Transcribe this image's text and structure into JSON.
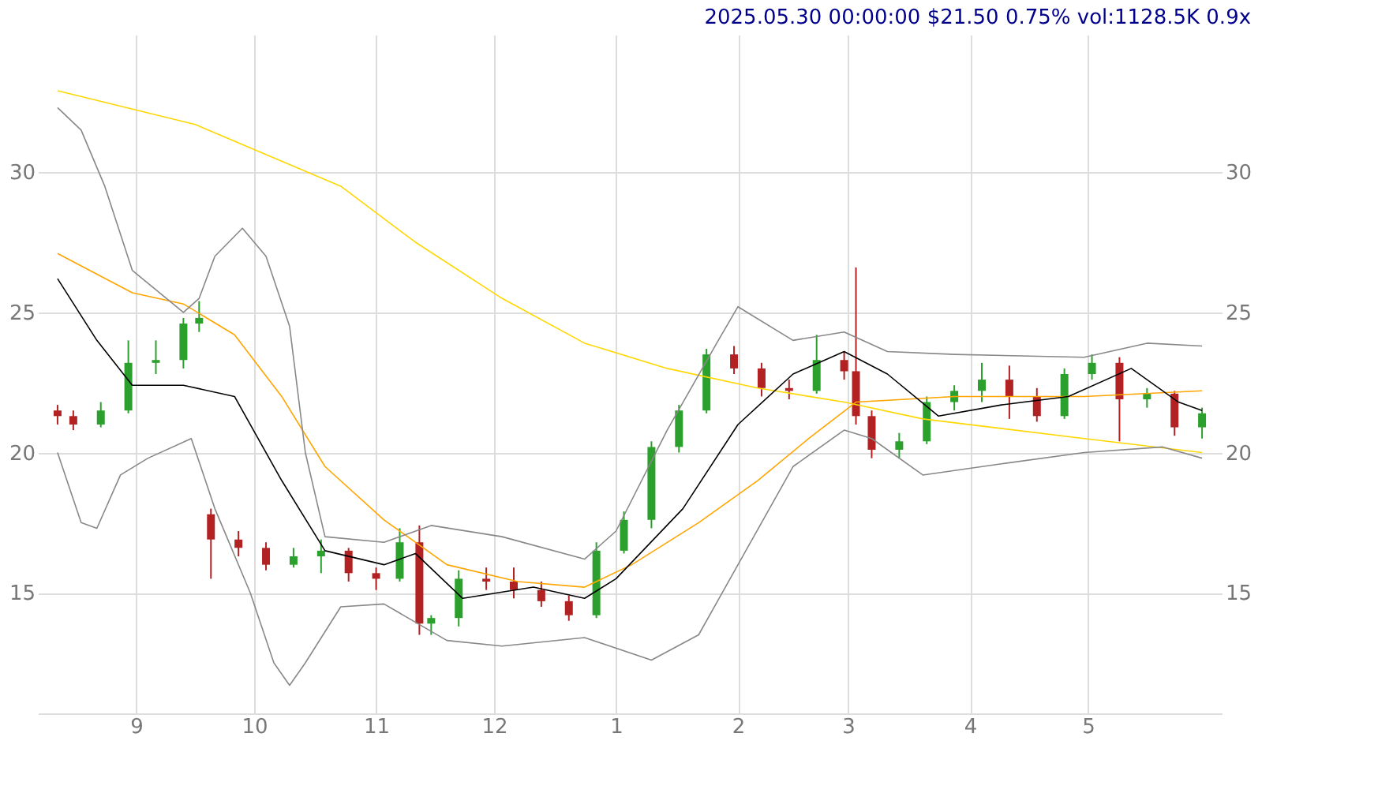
{
  "chart_data": {
    "type": "candlestick",
    "title": "2025.05.30 00:00:00 $21.50 0.75% vol:1128.5K 0.9x",
    "x": [
      "2024-08-12",
      "2024-08-16",
      "2024-08-23",
      "2024-08-30",
      "2024-09-06",
      "2024-09-13",
      "2024-09-17",
      "2024-09-20",
      "2024-09-27",
      "2024-10-04",
      "2024-10-11",
      "2024-10-18",
      "2024-10-25",
      "2024-11-01",
      "2024-11-07",
      "2024-11-12",
      "2024-11-15",
      "2024-11-22",
      "2024-11-29",
      "2024-12-06",
      "2024-12-13",
      "2024-12-20",
      "2024-12-27",
      "2025-01-03",
      "2025-01-10",
      "2025-01-17",
      "2025-01-24",
      "2025-01-31",
      "2025-02-07",
      "2025-02-14",
      "2025-02-21",
      "2025-02-28",
      "2025-03-03",
      "2025-03-07",
      "2025-03-14",
      "2025-03-21",
      "2025-03-28",
      "2025-04-04",
      "2025-04-11",
      "2025-04-18",
      "2025-04-25",
      "2025-05-02",
      "2025-05-09",
      "2025-05-16",
      "2025-05-23",
      "2025-05-30"
    ],
    "ohlc": [
      [
        21.5,
        21.7,
        21.0,
        21.3
      ],
      [
        21.3,
        21.5,
        20.8,
        21.0
      ],
      [
        21.0,
        21.8,
        20.9,
        21.5
      ],
      [
        21.5,
        24.0,
        21.4,
        23.2
      ],
      [
        23.2,
        24.0,
        22.8,
        23.3
      ],
      [
        23.3,
        24.8,
        23.0,
        24.6
      ],
      [
        24.6,
        25.4,
        24.3,
        24.8
      ],
      [
        17.8,
        18.0,
        15.5,
        16.9
      ],
      [
        16.9,
        17.2,
        16.3,
        16.6
      ],
      [
        16.6,
        16.8,
        15.8,
        16.0
      ],
      [
        16.0,
        16.6,
        15.9,
        16.3
      ],
      [
        16.3,
        16.9,
        15.7,
        16.5
      ],
      [
        16.5,
        16.6,
        15.4,
        15.7
      ],
      [
        15.7,
        15.9,
        15.1,
        15.5
      ],
      [
        15.5,
        17.3,
        15.4,
        16.8
      ],
      [
        16.8,
        17.4,
        13.5,
        13.9
      ],
      [
        13.9,
        14.2,
        13.5,
        14.1
      ],
      [
        14.1,
        15.8,
        13.8,
        15.5
      ],
      [
        15.5,
        15.9,
        15.1,
        15.4
      ],
      [
        15.4,
        15.9,
        14.8,
        15.1
      ],
      [
        15.1,
        15.4,
        14.5,
        14.7
      ],
      [
        14.7,
        14.9,
        14.0,
        14.2
      ],
      [
        14.2,
        16.8,
        14.1,
        16.5
      ],
      [
        16.5,
        17.9,
        16.4,
        17.6
      ],
      [
        17.6,
        20.4,
        17.3,
        20.2
      ],
      [
        20.2,
        21.7,
        20.0,
        21.5
      ],
      [
        21.5,
        23.7,
        21.4,
        23.5
      ],
      [
        23.5,
        23.8,
        22.8,
        23.0
      ],
      [
        23.0,
        23.2,
        22.0,
        22.3
      ],
      [
        22.3,
        22.6,
        21.9,
        22.2
      ],
      [
        22.2,
        24.2,
        22.1,
        23.3
      ],
      [
        23.3,
        23.6,
        22.6,
        22.9
      ],
      [
        22.9,
        26.6,
        21.0,
        21.3
      ],
      [
        21.3,
        21.5,
        19.8,
        20.1
      ],
      [
        20.1,
        20.7,
        19.8,
        20.4
      ],
      [
        20.4,
        22.0,
        20.3,
        21.8
      ],
      [
        21.8,
        22.4,
        21.5,
        22.2
      ],
      [
        22.2,
        23.2,
        21.8,
        22.6
      ],
      [
        22.6,
        23.1,
        21.2,
        22.0
      ],
      [
        22.0,
        22.3,
        21.1,
        21.3
      ],
      [
        21.3,
        23.0,
        21.2,
        22.8
      ],
      [
        22.8,
        23.5,
        22.6,
        23.2
      ],
      [
        23.2,
        23.4,
        20.4,
        21.9
      ],
      [
        21.9,
        22.3,
        21.6,
        22.1
      ],
      [
        22.1,
        22.2,
        20.6,
        20.9
      ],
      [
        20.9,
        21.6,
        20.5,
        21.4
      ]
    ],
    "colors": [
      "#b22222",
      "#b22222",
      "#2ca02c",
      "#2ca02c",
      "#2ca02c",
      "#2ca02c",
      "#2ca02c",
      "#b22222",
      "#b22222",
      "#b22222",
      "#2ca02c",
      "#2ca02c",
      "#b22222",
      "#b22222",
      "#2ca02c",
      "#b22222",
      "#2ca02c",
      "#2ca02c",
      "#b22222",
      "#b22222",
      "#b22222",
      "#b22222",
      "#2ca02c",
      "#2ca02c",
      "#2ca02c",
      "#2ca02c",
      "#2ca02c",
      "#b22222",
      "#b22222",
      "#b22222",
      "#2ca02c",
      "#b22222",
      "#b22222",
      "#b22222",
      "#2ca02c",
      "#2ca02c",
      "#2ca02c",
      "#2ca02c",
      "#b22222",
      "#b22222",
      "#2ca02c",
      "#2ca02c",
      "#b22222",
      "#2ca02c",
      "#b22222",
      "#2ca02c"
    ],
    "series": [
      {
        "type": "line",
        "color": "#ffd700",
        "x": [
          "2024-08-12",
          "2024-09-16",
          "2024-10-23",
          "2024-11-11",
          "2024-12-03",
          "2024-12-24",
          "2025-01-14",
          "2025-02-06",
          "2025-02-28",
          "2025-03-20",
          "2025-04-30",
          "2025-05-30"
        ],
        "values": [
          32.9,
          31.7,
          29.5,
          27.5,
          25.5,
          23.9,
          23.0,
          22.3,
          21.8,
          21.2,
          20.5,
          20.0
        ]
      },
      {
        "type": "line",
        "color": "#ffa500",
        "x": [
          "2024-08-12",
          "2024-08-31",
          "2024-09-13",
          "2024-09-26",
          "2024-10-08",
          "2024-10-19",
          "2024-11-03",
          "2024-11-19",
          "2024-12-07",
          "2024-12-24",
          "2025-01-05",
          "2025-01-22",
          "2025-02-06",
          "2025-02-19",
          "2025-03-03",
          "2025-03-28",
          "2025-04-30",
          "2025-05-30"
        ],
        "values": [
          27.1,
          25.7,
          25.3,
          24.2,
          22.0,
          19.5,
          17.6,
          16.0,
          15.4,
          15.2,
          16.0,
          17.5,
          19.0,
          20.5,
          21.8,
          22.0,
          22.0,
          22.2
        ]
      },
      {
        "type": "line",
        "color": "#000000",
        "x": [
          "2024-08-12",
          "2024-08-22",
          "2024-08-31",
          "2024-09-13",
          "2024-09-26",
          "2024-10-08",
          "2024-10-19",
          "2024-11-03",
          "2024-11-11",
          "2024-11-23",
          "2024-12-11",
          "2024-12-24",
          "2025-01-01",
          "2025-01-18",
          "2025-02-01",
          "2025-02-15",
          "2025-02-28",
          "2025-03-11",
          "2025-03-24",
          "2025-04-09",
          "2025-04-26",
          "2025-05-12",
          "2025-05-24",
          "2025-05-30"
        ],
        "values": [
          26.2,
          24.0,
          22.4,
          22.4,
          22.0,
          19.0,
          16.5,
          16.0,
          16.4,
          14.8,
          15.2,
          14.8,
          15.5,
          18.0,
          21.0,
          22.8,
          23.6,
          22.8,
          21.3,
          21.7,
          22.0,
          23.0,
          21.8,
          21.5
        ]
      },
      {
        "type": "line",
        "color": "#888888",
        "x": [
          "2024-08-12",
          "2024-08-18",
          "2024-08-24",
          "2024-08-31",
          "2024-09-13",
          "2024-09-17",
          "2024-09-21",
          "2024-09-28",
          "2024-10-04",
          "2024-10-10",
          "2024-10-14",
          "2024-10-19",
          "2024-11-03",
          "2024-11-15",
          "2024-12-03",
          "2024-12-24",
          "2025-01-01",
          "2025-01-14",
          "2025-01-27",
          "2025-02-01",
          "2025-02-15",
          "2025-02-28",
          "2025-03-11",
          "2025-03-28",
          "2025-04-30",
          "2025-05-16",
          "2025-05-30"
        ],
        "values": [
          32.3,
          31.5,
          29.5,
          26.5,
          25.0,
          25.5,
          27.0,
          28.0,
          27.0,
          24.5,
          20.0,
          17.0,
          16.8,
          17.4,
          17.0,
          16.2,
          17.2,
          20.8,
          24.0,
          25.2,
          24.0,
          24.3,
          23.6,
          23.5,
          23.4,
          23.9,
          23.8
        ]
      },
      {
        "type": "line",
        "color": "#888888",
        "x": [
          "2024-08-12",
          "2024-08-18",
          "2024-08-22",
          "2024-08-28",
          "2024-09-04",
          "2024-09-15",
          "2024-09-21",
          "2024-09-30",
          "2024-10-06",
          "2024-10-10",
          "2024-10-14",
          "2024-10-23",
          "2024-11-03",
          "2024-11-19",
          "2024-12-03",
          "2024-12-24",
          "2025-01-10",
          "2025-01-22",
          "2025-02-01",
          "2025-02-15",
          "2025-02-28",
          "2025-03-07",
          "2025-03-20",
          "2025-04-09",
          "2025-04-30",
          "2025-05-20",
          "2025-05-30"
        ],
        "values": [
          20.0,
          17.5,
          17.3,
          19.2,
          19.8,
          20.5,
          18.0,
          15.0,
          12.5,
          11.7,
          12.5,
          14.5,
          14.6,
          13.3,
          13.1,
          13.4,
          12.6,
          13.5,
          16.0,
          19.5,
          20.8,
          20.5,
          19.2,
          19.6,
          20.0,
          20.2,
          19.8
        ]
      }
    ],
    "xlim": [
      "2024-08-07",
      "2025-06-04"
    ],
    "xticks": [
      {
        "value": "2024-09-01",
        "label": "9"
      },
      {
        "value": "2024-10-01",
        "label": "10"
      },
      {
        "value": "2024-11-01",
        "label": "11"
      },
      {
        "value": "2024-12-01",
        "label": "12"
      },
      {
        "value": "2025-01-01",
        "label": "1"
      },
      {
        "value": "2025-02-01",
        "label": "2"
      },
      {
        "value": "2025-03-01",
        "label": "3"
      },
      {
        "value": "2025-04-01",
        "label": "4"
      },
      {
        "value": "2025-05-01",
        "label": "5"
      }
    ],
    "ylim": [
      10.7,
      34.9
    ],
    "yticks": [
      15,
      20,
      25,
      30
    ],
    "y2lim": [
      10.7,
      34.9
    ],
    "y2ticks": [
      15,
      20,
      25,
      30
    ],
    "grid": true
  }
}
